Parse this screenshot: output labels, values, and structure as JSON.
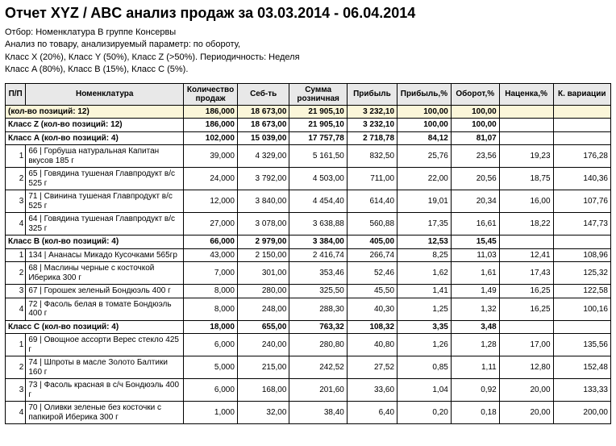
{
  "title": "Отчет XYZ / ABC анализ продаж за 03.03.2014 - 06.04.2014",
  "meta": [
    "Отбор: Номенклатура  В группе  Консервы",
    "Анализ по товару,  анализируемый параметр:  по обороту,",
    "Класс X (20%),  Класс Y (50%),  Класс Z (>50%). Периодичность: Неделя",
    "Класс A (80%),  Класс B (15%),  Класс C (5%)."
  ],
  "headers": {
    "pp": "П/П",
    "nom": "Номенклатура",
    "qty": "Количество продаж",
    "seb": "Себ-ть",
    "sum": "Сумма розничная",
    "prib": "Прибыль",
    "pribp": "Прибыль,%",
    "oborp": "Оборот,%",
    "nac": "Наценка,%",
    "kvar": "К. вариации"
  },
  "rows": [
    {
      "type": "grand",
      "label": "(кол-во позиций: 12)",
      "qty": "186,000",
      "seb": "18 673,00",
      "sum": "21 905,10",
      "prib": "3 232,10",
      "pribp": "100,00",
      "oborp": "100,00",
      "nac": "",
      "kvar": ""
    },
    {
      "type": "class",
      "label": "Класс Z (кол-во позиций: 12)",
      "qty": "186,000",
      "seb": "18 673,00",
      "sum": "21 905,10",
      "prib": "3 232,10",
      "pribp": "100,00",
      "oborp": "100,00",
      "nac": "",
      "kvar": ""
    },
    {
      "type": "class",
      "label": "Класс A (кол-во позиций: 4)",
      "qty": "102,000",
      "seb": "15 039,00",
      "sum": "17 757,78",
      "prib": "2 718,78",
      "pribp": "84,12",
      "oborp": "81,07",
      "nac": "",
      "kvar": ""
    },
    {
      "type": "item",
      "pp": "1",
      "label": "66 | Горбуша натуральная Капитан вкусов 185 г",
      "qty": "39,000",
      "seb": "4 329,00",
      "sum": "5 161,50",
      "prib": "832,50",
      "pribp": "25,76",
      "oborp": "23,56",
      "nac": "19,23",
      "kvar": "176,28"
    },
    {
      "type": "item",
      "pp": "2",
      "label": "65 | Говядина тушеная Главпродукт в/с 525 г",
      "qty": "24,000",
      "seb": "3 792,00",
      "sum": "4 503,00",
      "prib": "711,00",
      "pribp": "22,00",
      "oborp": "20,56",
      "nac": "18,75",
      "kvar": "140,36"
    },
    {
      "type": "item",
      "pp": "3",
      "label": "71 | Свинина тушеная Главпродукт в/с 525 г",
      "qty": "12,000",
      "seb": "3 840,00",
      "sum": "4 454,40",
      "prib": "614,40",
      "pribp": "19,01",
      "oborp": "20,34",
      "nac": "16,00",
      "kvar": "107,76"
    },
    {
      "type": "item",
      "pp": "4",
      "label": "64 | Говядина тушеная Главпродукт в/с 325 г",
      "qty": "27,000",
      "seb": "3 078,00",
      "sum": "3 638,88",
      "prib": "560,88",
      "pribp": "17,35",
      "oborp": "16,61",
      "nac": "18,22",
      "kvar": "147,73"
    },
    {
      "type": "class",
      "label": "Класс B (кол-во позиций: 4)",
      "qty": "66,000",
      "seb": "2 979,00",
      "sum": "3 384,00",
      "prib": "405,00",
      "pribp": "12,53",
      "oborp": "15,45",
      "nac": "",
      "kvar": ""
    },
    {
      "type": "item",
      "pp": "1",
      "label": "134 | Ананасы Микадо Кусочками 565гр",
      "qty": "43,000",
      "seb": "2 150,00",
      "sum": "2 416,74",
      "prib": "266,74",
      "pribp": "8,25",
      "oborp": "11,03",
      "nac": "12,41",
      "kvar": "108,96"
    },
    {
      "type": "item",
      "pp": "2",
      "label": "68 | Маслины черные с косточкой Иберика 300 г",
      "qty": "7,000",
      "seb": "301,00",
      "sum": "353,46",
      "prib": "52,46",
      "pribp": "1,62",
      "oborp": "1,61",
      "nac": "17,43",
      "kvar": "125,32"
    },
    {
      "type": "item",
      "pp": "3",
      "label": "67 | Горошек зеленый Бондюэль 400 г",
      "qty": "8,000",
      "seb": "280,00",
      "sum": "325,50",
      "prib": "45,50",
      "pribp": "1,41",
      "oborp": "1,49",
      "nac": "16,25",
      "kvar": "122,58"
    },
    {
      "type": "item",
      "pp": "4",
      "label": "72 | Фасоль белая в томате Бондюэль 400 г",
      "qty": "8,000",
      "seb": "248,00",
      "sum": "288,30",
      "prib": "40,30",
      "pribp": "1,25",
      "oborp": "1,32",
      "nac": "16,25",
      "kvar": "100,16"
    },
    {
      "type": "class",
      "label": "Класс C (кол-во позиций: 4)",
      "qty": "18,000",
      "seb": "655,00",
      "sum": "763,32",
      "prib": "108,32",
      "pribp": "3,35",
      "oborp": "3,48",
      "nac": "",
      "kvar": ""
    },
    {
      "type": "item",
      "pp": "1",
      "label": "69 | Овощное ассорти Верес стекло 425 г",
      "qty": "6,000",
      "seb": "240,00",
      "sum": "280,80",
      "prib": "40,80",
      "pribp": "1,26",
      "oborp": "1,28",
      "nac": "17,00",
      "kvar": "135,56"
    },
    {
      "type": "item",
      "pp": "2",
      "label": "74 | Шпроты в масле Золото Балтики 160 г",
      "qty": "5,000",
      "seb": "215,00",
      "sum": "242,52",
      "prib": "27,52",
      "pribp": "0,85",
      "oborp": "1,11",
      "nac": "12,80",
      "kvar": "152,48"
    },
    {
      "type": "item",
      "pp": "3",
      "label": "73 | Фасоль красная в с/ч Бондюэль 400 г",
      "qty": "6,000",
      "seb": "168,00",
      "sum": "201,60",
      "prib": "33,60",
      "pribp": "1,04",
      "oborp": "0,92",
      "nac": "20,00",
      "kvar": "133,33"
    },
    {
      "type": "item",
      "pp": "4",
      "label": "70 | Оливки зеленые без косточки с папкирой Иберика 300 г",
      "qty": "1,000",
      "seb": "32,00",
      "sum": "38,40",
      "prib": "6,40",
      "pribp": "0,20",
      "oborp": "0,18",
      "nac": "20,00",
      "kvar": "200,00"
    }
  ]
}
